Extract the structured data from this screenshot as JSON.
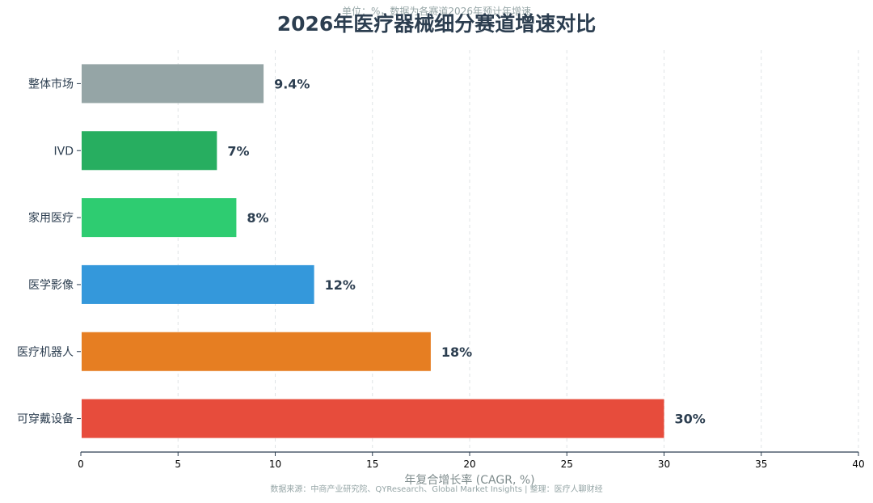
{
  "header": {
    "subtitle": "单位：%，数据为各赛道2026年预计年增速",
    "title": "2026年医疗器械细分赛道增速对比"
  },
  "footer": {
    "source": "数据来源：中商产业研究院、QYResearch、Global Market Insights | 整理：医疗人聊财经"
  },
  "chart_data": {
    "type": "bar",
    "orientation": "horizontal",
    "title": "2026年医疗器械细分赛道增速对比",
    "subtitle": "单位：%，数据为各赛道2026年预计年增速",
    "xlabel": "年复合增长率 (CAGR, %)",
    "ylabel": "",
    "xlim": [
      0,
      40
    ],
    "xticks": [
      0,
      5,
      10,
      15,
      20,
      25,
      30,
      35,
      40
    ],
    "grid": "vertical-dashed",
    "categories": [
      "整体市场",
      "IVD",
      "家用医疗",
      "医学影像",
      "医疗机器人",
      "可穿戴设备"
    ],
    "values": [
      9.4,
      7,
      8,
      12,
      18,
      30
    ],
    "value_labels": [
      "9.4%",
      "7%",
      "8%",
      "12%",
      "18%",
      "30%"
    ],
    "colors": [
      "#95a5a6",
      "#27ae60",
      "#2ecc71",
      "#3498db",
      "#e67e22",
      "#e74c3c"
    ]
  }
}
